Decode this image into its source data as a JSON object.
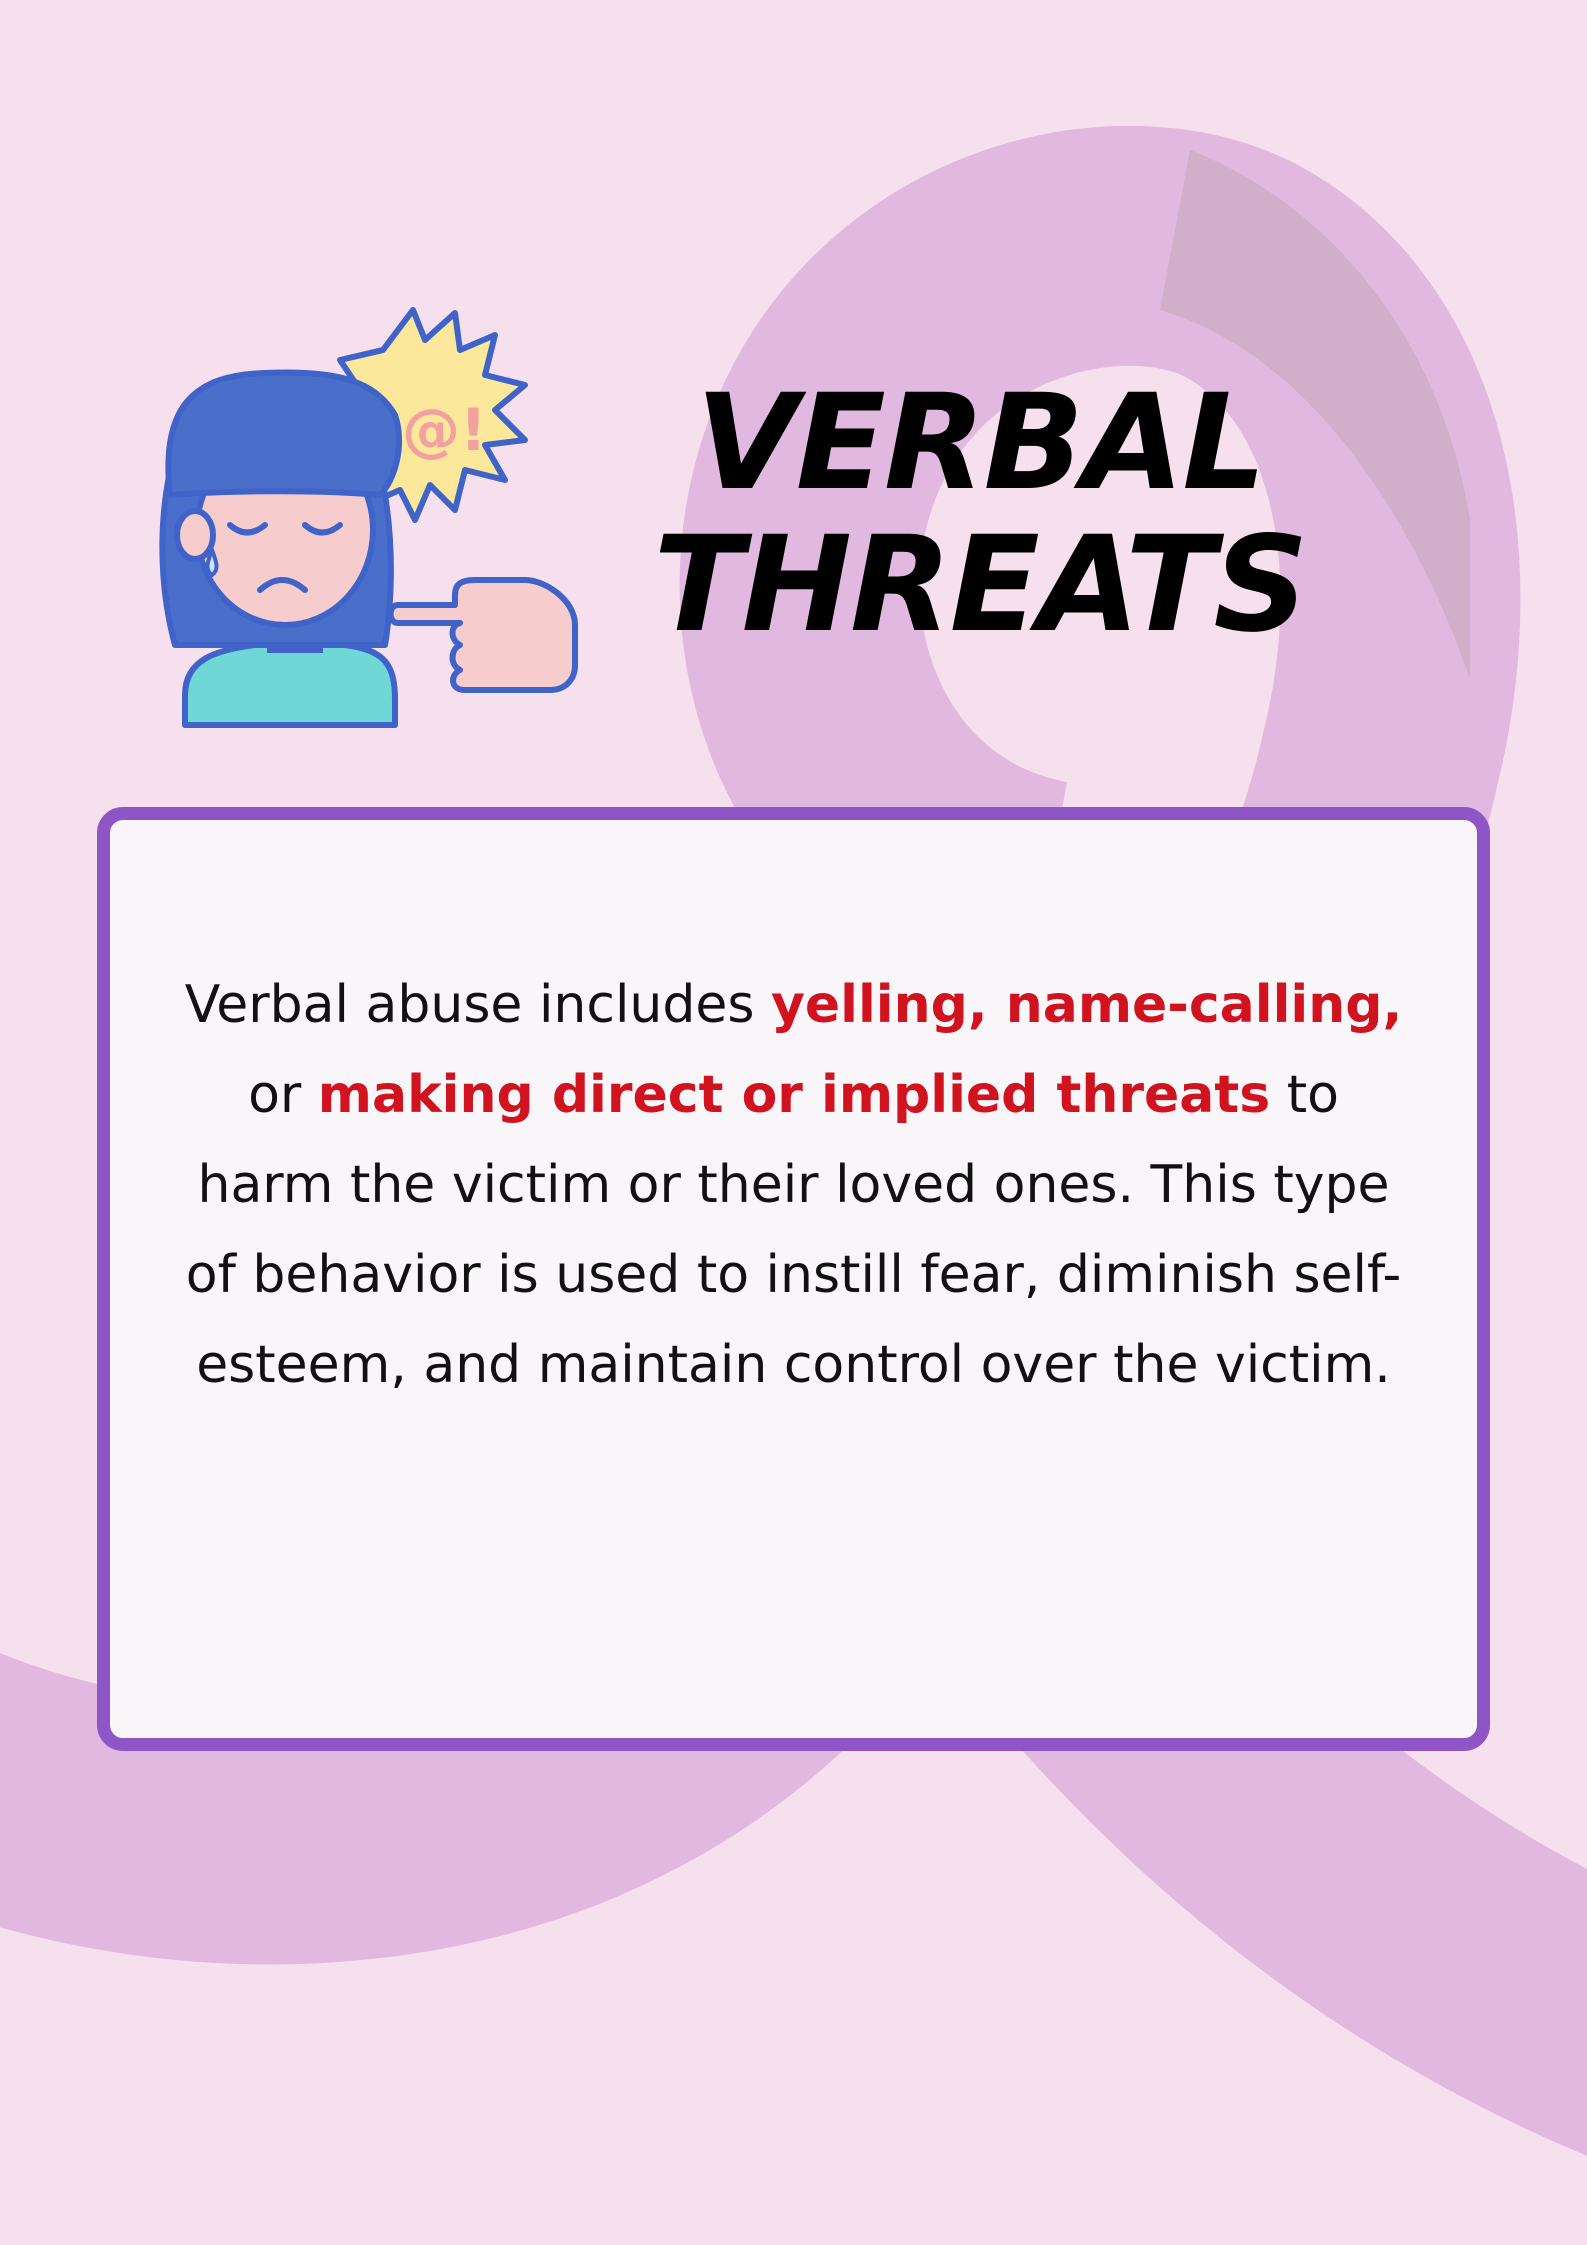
{
  "colors": {
    "background": "#f7e0ee",
    "ribbon": "#e1b8df",
    "card_border": "#8e55c6",
    "card_fill": "#f9f6f9",
    "highlight": "#d1131f"
  },
  "illustration": {
    "icon": "crying-person-being-pointed-at-icon",
    "speech_symbols": "#@!"
  },
  "title": {
    "line1": "VERBAL",
    "line2": "THREATS"
  },
  "body": {
    "seg1": "Verbal abuse includes ",
    "hl1": "yelling, name-calling,",
    "seg2": " or ",
    "hl2": "making direct or implied threats",
    "seg3": " to harm the victim or their loved ones. This type of behavior is used to instill fear, diminish self-esteem, and maintain control over the victim."
  }
}
